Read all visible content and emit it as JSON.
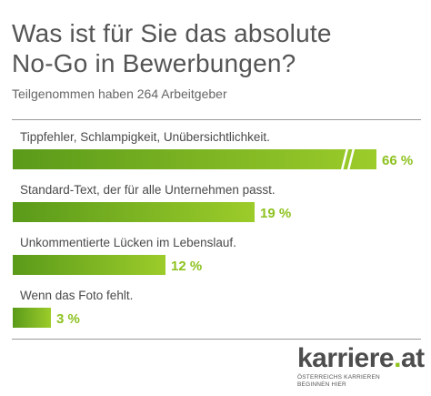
{
  "header": {
    "title_line1": "Was ist für Sie das absolute",
    "title_line2": "No-Go in Bewerbungen?",
    "subtitle": "Teilgenommen haben 264 Arbeitgeber"
  },
  "chart_data": {
    "type": "bar",
    "orientation": "horizontal",
    "title": "Was ist für Sie das absolute No-Go in Bewerbungen?",
    "subtitle": "Teilgenommen haben 264 Arbeitgeber",
    "categories": [
      "Tippfehler, Schlampigkeit, Unübersichtlichkeit.",
      "Standard-Text, der für alle Unternehmen passt.",
      "Unkommentierte Lücken im Lebenslauf.",
      "Wenn das Foto fehlt."
    ],
    "values": [
      66,
      19,
      12,
      3
    ],
    "value_labels": [
      "66 %",
      "19 %",
      "12 %",
      "3 %"
    ],
    "unit": "%",
    "broken_axis_bar_index": 0,
    "colors": {
      "bar_start": "#5a9a1a",
      "bar_end": "#9ccc2a",
      "label": "#8dc21f"
    },
    "grid": false
  },
  "logo": {
    "word": "karriere",
    "dot": ".",
    "suffix": "at",
    "tagline_line1": "ÖSTERREICHS KARRIEREN",
    "tagline_line2": "BEGINNEN HIER"
  }
}
